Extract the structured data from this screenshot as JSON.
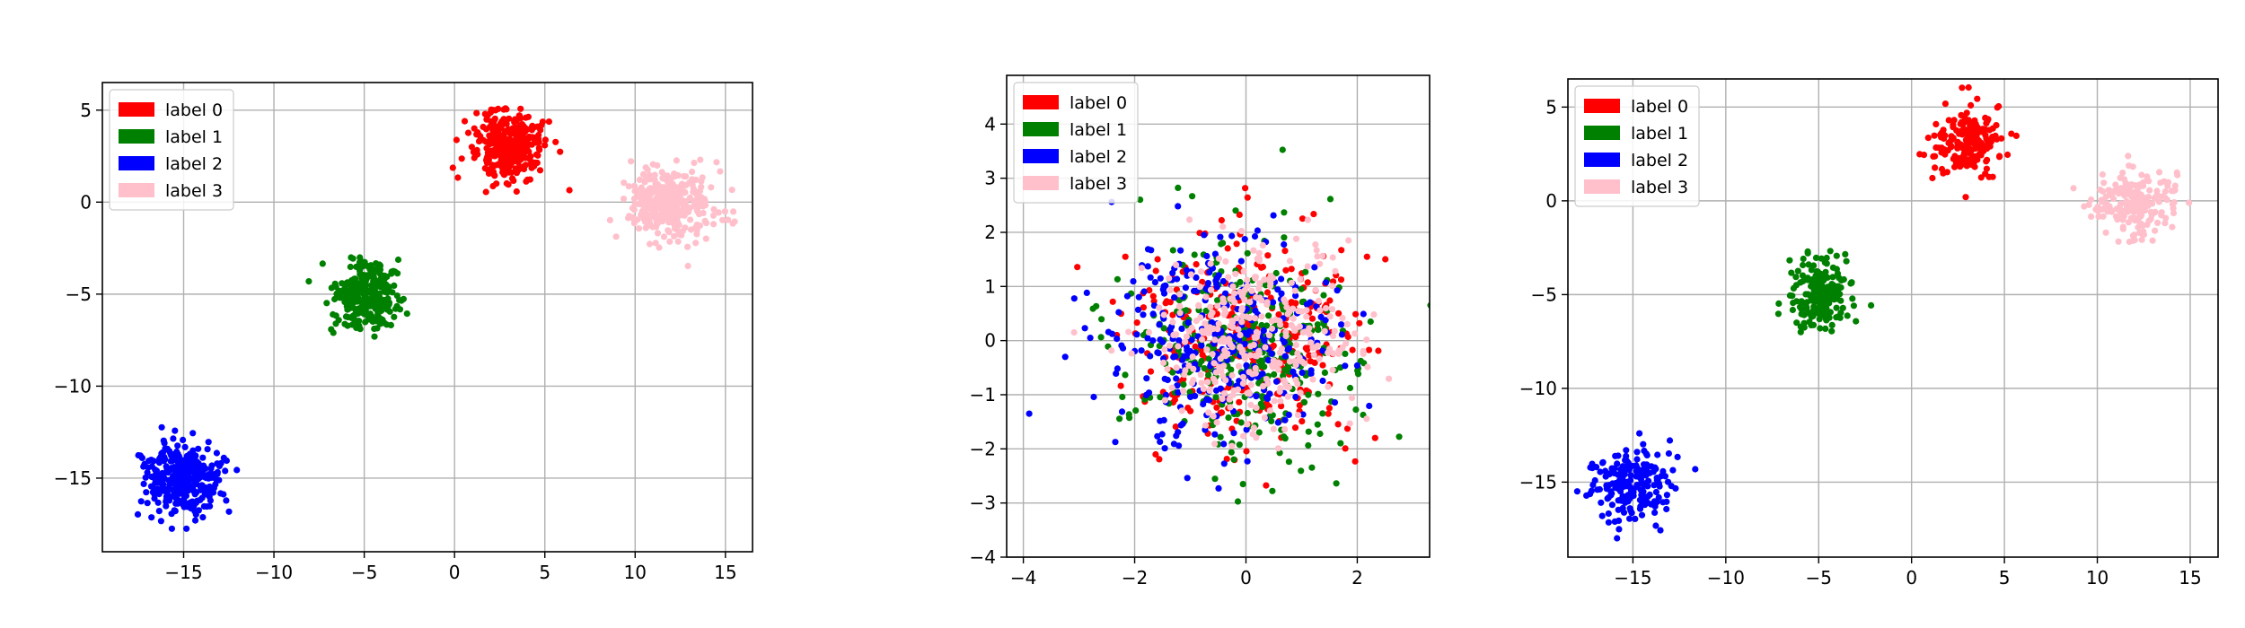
{
  "colors": {
    "label 0": "#ff0000",
    "label 1": "#008000",
    "label 2": "#0000ff",
    "label 3": "#ffc0cb"
  },
  "chart_data": [
    {
      "type": "scatter",
      "title": "",
      "xlabel": "",
      "ylabel": "",
      "grid": true,
      "legend_position": "top-left",
      "xlim": [
        -19.5,
        16.5
      ],
      "ylim": [
        -19.0,
        6.5
      ],
      "xticks": [
        -15,
        -10,
        -5,
        0,
        5,
        10,
        15
      ],
      "yticks": [
        5,
        0,
        -5,
        -10,
        -15
      ],
      "xtick_labels": [
        "−15",
        "−10",
        "−5",
        "0",
        "5",
        "10",
        "15"
      ],
      "ytick_labels": [
        "5",
        "0",
        "−5",
        "−10",
        "−15"
      ],
      "series": [
        {
          "name": "label 0",
          "color": "#ff0000",
          "center": [
            3,
            3
          ],
          "spread": [
            1.0,
            0.95
          ],
          "n": 340
        },
        {
          "name": "label 1",
          "color": "#008000",
          "center": [
            -5,
            -5
          ],
          "spread": [
            0.9,
            0.9
          ],
          "n": 340
        },
        {
          "name": "label 2",
          "color": "#0000ff",
          "center": [
            -15,
            -15
          ],
          "spread": [
            1.1,
            1.0
          ],
          "n": 340
        },
        {
          "name": "label 3",
          "color": "#ffc0cb",
          "center": [
            12,
            0
          ],
          "spread": [
            1.2,
            0.95
          ],
          "n": 340
        }
      ]
    },
    {
      "type": "scatter",
      "title": "",
      "xlabel": "",
      "ylabel": "",
      "grid": true,
      "legend_position": "top-left",
      "xlim": [
        -4.3,
        3.3
      ],
      "ylim": [
        -4.0,
        4.9
      ],
      "xticks": [
        -4,
        -2,
        0,
        2
      ],
      "yticks": [
        4,
        3,
        2,
        1,
        0,
        -1,
        -2,
        -3,
        -4
      ],
      "xtick_labels": [
        "−4",
        "−2",
        "0",
        "2"
      ],
      "ytick_labels": [
        "4",
        "3",
        "2",
        "1",
        "0",
        "−1",
        "−2",
        "−3",
        "−4"
      ],
      "series": [
        {
          "name": "label 0",
          "color": "#ff0000",
          "center": [
            0,
            0
          ],
          "spread": [
            1.0,
            1.0
          ],
          "n": 330
        },
        {
          "name": "label 1",
          "color": "#008000",
          "center": [
            0,
            0
          ],
          "spread": [
            1.0,
            1.0
          ],
          "n": 330
        },
        {
          "name": "label 2",
          "color": "#0000ff",
          "center": [
            -0.4,
            0.1
          ],
          "spread": [
            1.0,
            1.0
          ],
          "n": 330
        },
        {
          "name": "label 3",
          "color": "#ffc0cb",
          "center": [
            0.1,
            0
          ],
          "spread": [
            0.9,
            0.9
          ],
          "n": 330
        }
      ]
    },
    {
      "type": "scatter",
      "title": "",
      "xlabel": "",
      "ylabel": "",
      "grid": true,
      "legend_position": "top-left",
      "xlim": [
        -18.5,
        16.5
      ],
      "ylim": [
        -19.0,
        6.5
      ],
      "xticks": [
        -15,
        -10,
        -5,
        0,
        5,
        10,
        15
      ],
      "yticks": [
        5,
        0,
        -5,
        -10,
        -15
      ],
      "xtick_labels": [
        "−15",
        "−10",
        "−5",
        "0",
        "5",
        "10",
        "15"
      ],
      "ytick_labels": [
        "5",
        "0",
        "−5",
        "−10",
        "−15"
      ],
      "series": [
        {
          "name": "label 0",
          "color": "#ff0000",
          "center": [
            3,
            3
          ],
          "spread": [
            0.95,
            0.95
          ],
          "n": 200
        },
        {
          "name": "label 1",
          "color": "#008000",
          "center": [
            -5,
            -5
          ],
          "spread": [
            0.85,
            1.0
          ],
          "n": 200
        },
        {
          "name": "label 2",
          "color": "#0000ff",
          "center": [
            -15,
            -15
          ],
          "spread": [
            1.1,
            0.9
          ],
          "n": 200
        },
        {
          "name": "label 3",
          "color": "#ffc0cb",
          "center": [
            12,
            0
          ],
          "spread": [
            1.0,
            0.9
          ],
          "n": 200
        }
      ]
    }
  ]
}
